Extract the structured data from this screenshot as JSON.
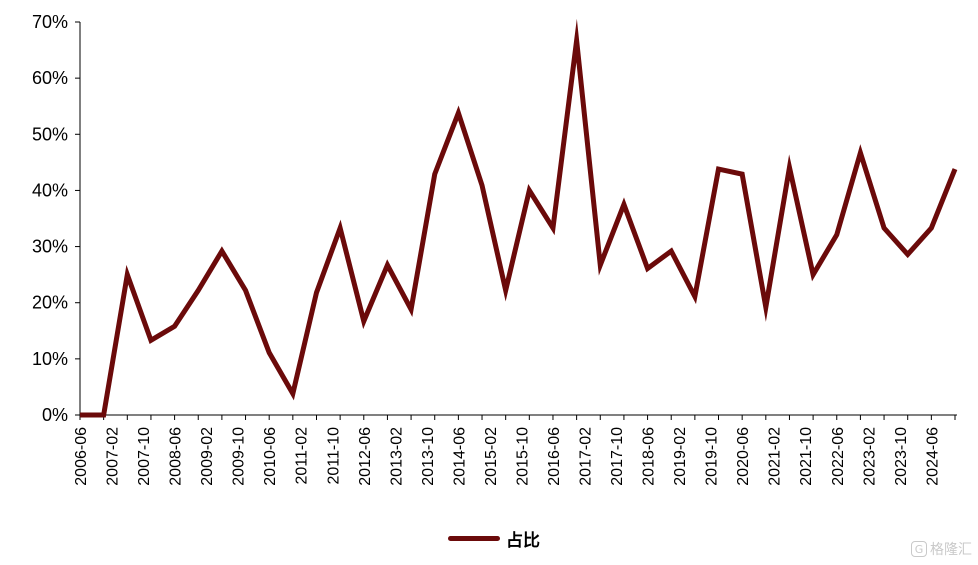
{
  "chart_data": {
    "type": "line",
    "title": "",
    "xlabel": "",
    "ylabel": "",
    "ylim": [
      0,
      70
    ],
    "y_ticks": [
      "0%",
      "10%",
      "20%",
      "30%",
      "40%",
      "50%",
      "60%",
      "70%"
    ],
    "x_tick_labels": [
      "2006-06",
      "2007-02",
      "2007-10",
      "2008-06",
      "2009-02",
      "2009-10",
      "2010-06",
      "2011-02",
      "2011-10",
      "2012-06",
      "2013-02",
      "2013-10",
      "2014-06",
      "2015-02",
      "2015-10",
      "2016-06",
      "2017-02",
      "2017-10",
      "2018-06",
      "2019-02",
      "2019-10",
      "2020-06",
      "2021-02",
      "2021-10",
      "2022-06",
      "2023-02",
      "2023-10",
      "2024-06"
    ],
    "grid": false,
    "legend_position": "bottom-center",
    "series": [
      {
        "name": "占比",
        "color": "#6b0a0a",
        "values": [
          0,
          0,
          25,
          13.3,
          15.8,
          22.2,
          29.2,
          22.2,
          11.1,
          3.8,
          21.8,
          33.3,
          16.7,
          26.7,
          18.8,
          42.9,
          53.8,
          40.9,
          22.2,
          40,
          33.3,
          66.7,
          26.7,
          37.5,
          26.1,
          29.2,
          21.1,
          43.8,
          42.9,
          19.2,
          44.1,
          25,
          32.1,
          46.7,
          33.3,
          28.6,
          33.3,
          43.8
        ]
      }
    ]
  },
  "legend": {
    "label": "占比"
  },
  "watermark": {
    "icon": "G",
    "text": "格隆汇"
  }
}
